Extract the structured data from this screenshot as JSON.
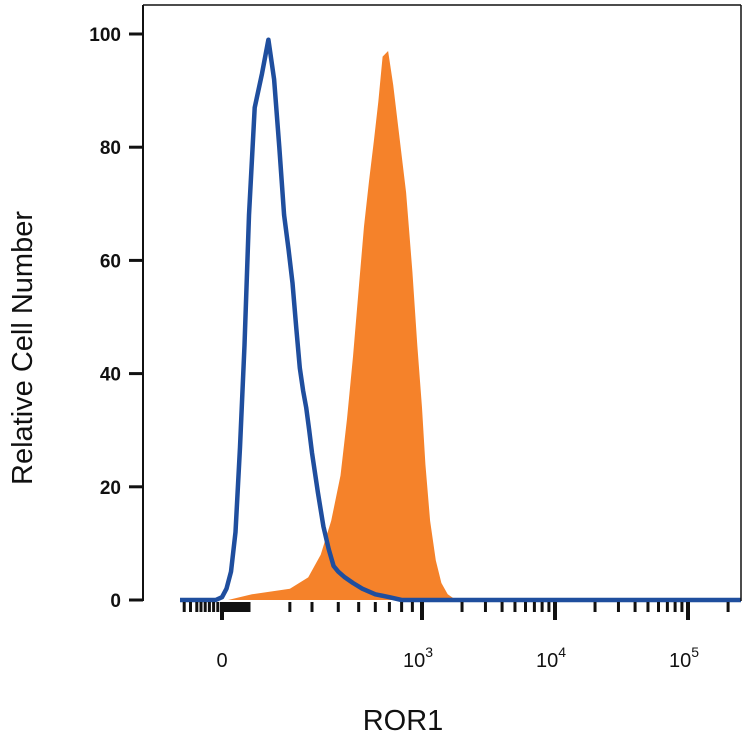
{
  "chart_data": {
    "type": "area",
    "title": "",
    "xlabel": "ROR1",
    "ylabel": "Relative Cell Number",
    "x_scale": "biexponential",
    "xlim": [
      -200,
      250000
    ],
    "ylim": [
      0,
      100
    ],
    "y_ticks": [
      "0",
      "20",
      "40",
      "60",
      "80",
      "100"
    ],
    "x_ticks": [
      {
        "value": 0,
        "base": "0",
        "exp": ""
      },
      {
        "value": 1000,
        "base": "10",
        "exp": "3"
      },
      {
        "value": 10000,
        "base": "10",
        "exp": "4"
      },
      {
        "value": 100000,
        "base": "10",
        "exp": "5"
      }
    ],
    "legend": "none",
    "grid": false,
    "series": [
      {
        "style": "filled",
        "color": "#f5822a",
        "points": [
          [
            -200,
            0
          ],
          [
            20,
            0
          ],
          [
            100,
            1
          ],
          [
            200,
            2
          ],
          [
            280,
            4
          ],
          [
            330,
            8
          ],
          [
            370,
            14
          ],
          [
            410,
            22
          ],
          [
            440,
            32
          ],
          [
            470,
            43
          ],
          [
            500,
            55
          ],
          [
            530,
            66
          ],
          [
            560,
            74
          ],
          [
            590,
            81
          ],
          [
            620,
            88
          ],
          [
            650,
            96
          ],
          [
            690,
            97
          ],
          [
            730,
            91
          ],
          [
            780,
            82
          ],
          [
            840,
            72
          ],
          [
            900,
            58
          ],
          [
            950,
            45
          ],
          [
            1000,
            34
          ],
          [
            1060,
            24
          ],
          [
            1150,
            14
          ],
          [
            1270,
            7
          ],
          [
            1400,
            3
          ],
          [
            1560,
            1
          ],
          [
            1800,
            0
          ],
          [
            250000,
            0
          ]
        ]
      },
      {
        "style": "line",
        "color": "#1f4e9e",
        "points": [
          [
            -200,
            0
          ],
          [
            -30,
            0
          ],
          [
            0,
            0.5
          ],
          [
            15,
            2
          ],
          [
            30,
            5
          ],
          [
            45,
            12
          ],
          [
            60,
            27
          ],
          [
            75,
            45
          ],
          [
            90,
            68
          ],
          [
            105,
            87
          ],
          [
            120,
            93
          ],
          [
            135,
            99
          ],
          [
            150,
            92
          ],
          [
            165,
            80
          ],
          [
            180,
            68
          ],
          [
            195,
            62
          ],
          [
            210,
            56
          ],
          [
            225,
            48
          ],
          [
            240,
            41
          ],
          [
            255,
            37
          ],
          [
            270,
            34
          ],
          [
            285,
            30
          ],
          [
            300,
            26
          ],
          [
            320,
            19
          ],
          [
            340,
            13
          ],
          [
            360,
            9
          ],
          [
            380,
            6
          ],
          [
            400,
            5
          ],
          [
            430,
            4
          ],
          [
            470,
            3
          ],
          [
            520,
            2
          ],
          [
            600,
            1
          ],
          [
            700,
            0.5
          ],
          [
            800,
            0
          ],
          [
            250000,
            0
          ]
        ]
      }
    ]
  }
}
